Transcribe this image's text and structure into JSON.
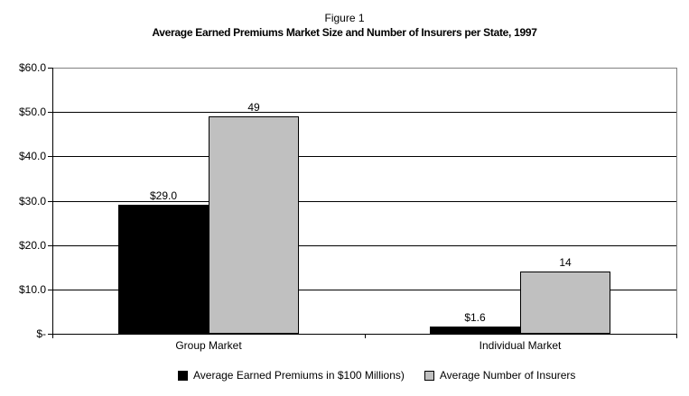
{
  "chart_data": {
    "type": "bar",
    "title": "Figure 1",
    "subtitle": "Average Earned Premiums Market Size and Number of Insurers per State, 1997",
    "categories": [
      "Group Market",
      "Individual Market"
    ],
    "series": [
      {
        "name": "Average Earned Premiums in $100 Millions)",
        "color": "#000000",
        "values": [
          29.0,
          1.6
        ],
        "data_labels": [
          "$29.0",
          "$1.6"
        ]
      },
      {
        "name": "Average Number of Insurers",
        "color": "#c0c0c0",
        "values": [
          49,
          14
        ],
        "data_labels": [
          "49",
          "14"
        ]
      }
    ],
    "xlabel": "",
    "ylabel": "",
    "ylim": [
      0,
      60
    ],
    "ytick_interval": 10,
    "ytick_labels": [
      "$-",
      "$10.0",
      "$20.0",
      "$30.0",
      "$40.0",
      "$50.0",
      "$60.0"
    ],
    "grid": "horizontal",
    "legend_position": "bottom",
    "colors": {
      "gridline": "#000000",
      "axis_line": "#000000",
      "plot_border": "#808080",
      "background": "#ffffff"
    }
  }
}
